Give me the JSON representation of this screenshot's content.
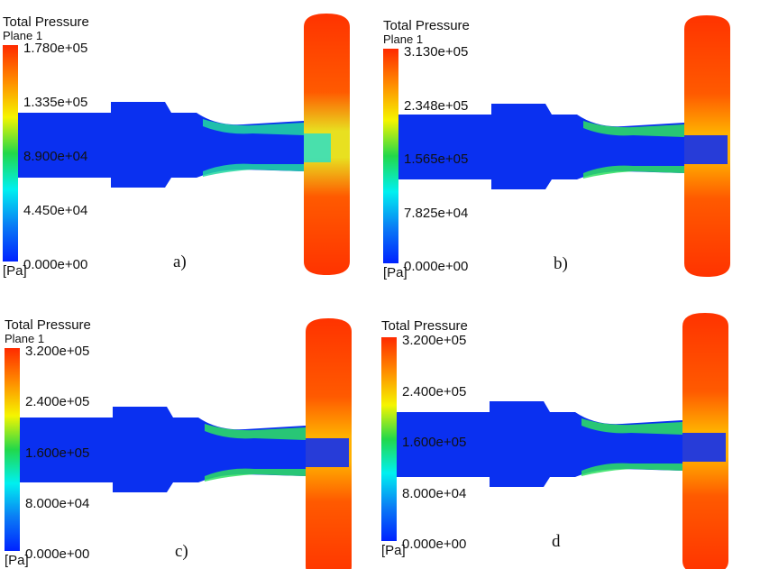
{
  "panels": [
    {
      "id": "a",
      "title": "Total Pressure",
      "subtitle": "Plane 1",
      "ticks": [
        "1.780e+05",
        "1.335e+05",
        "8.900e+04",
        "4.450e+04",
        "0.000e+00"
      ],
      "unit": "[Pa]",
      "label": "a)"
    },
    {
      "id": "b",
      "title": "Total Pressure",
      "subtitle": "Plane 1",
      "ticks": [
        "3.130e+05",
        "2.348e+05",
        "1.565e+05",
        "7.825e+04",
        "0.000e+00"
      ],
      "unit": "[Pa]",
      "label": "b)"
    },
    {
      "id": "c",
      "title": "Total Pressure",
      "subtitle": "Plane 1",
      "ticks": [
        "3.200e+05",
        "2.400e+05",
        "1.600e+05",
        "8.000e+04",
        "0.000e+00"
      ],
      "unit": "[Pa]",
      "label": "c)"
    },
    {
      "id": "d",
      "title": "Total Pressure",
      "subtitle": null,
      "ticks": [
        "3.200e+05",
        "2.400e+05",
        "1.600e+05",
        "8.000e+04",
        "0.000e+00"
      ],
      "unit": "[Pa]",
      "label": "d"
    }
  ],
  "colormap": [
    "#ff2a00",
    "#ff8c00",
    "#f5f500",
    "#22d84a",
    "#00f0f0",
    "#0a7cf5",
    "#0022ff"
  ]
}
